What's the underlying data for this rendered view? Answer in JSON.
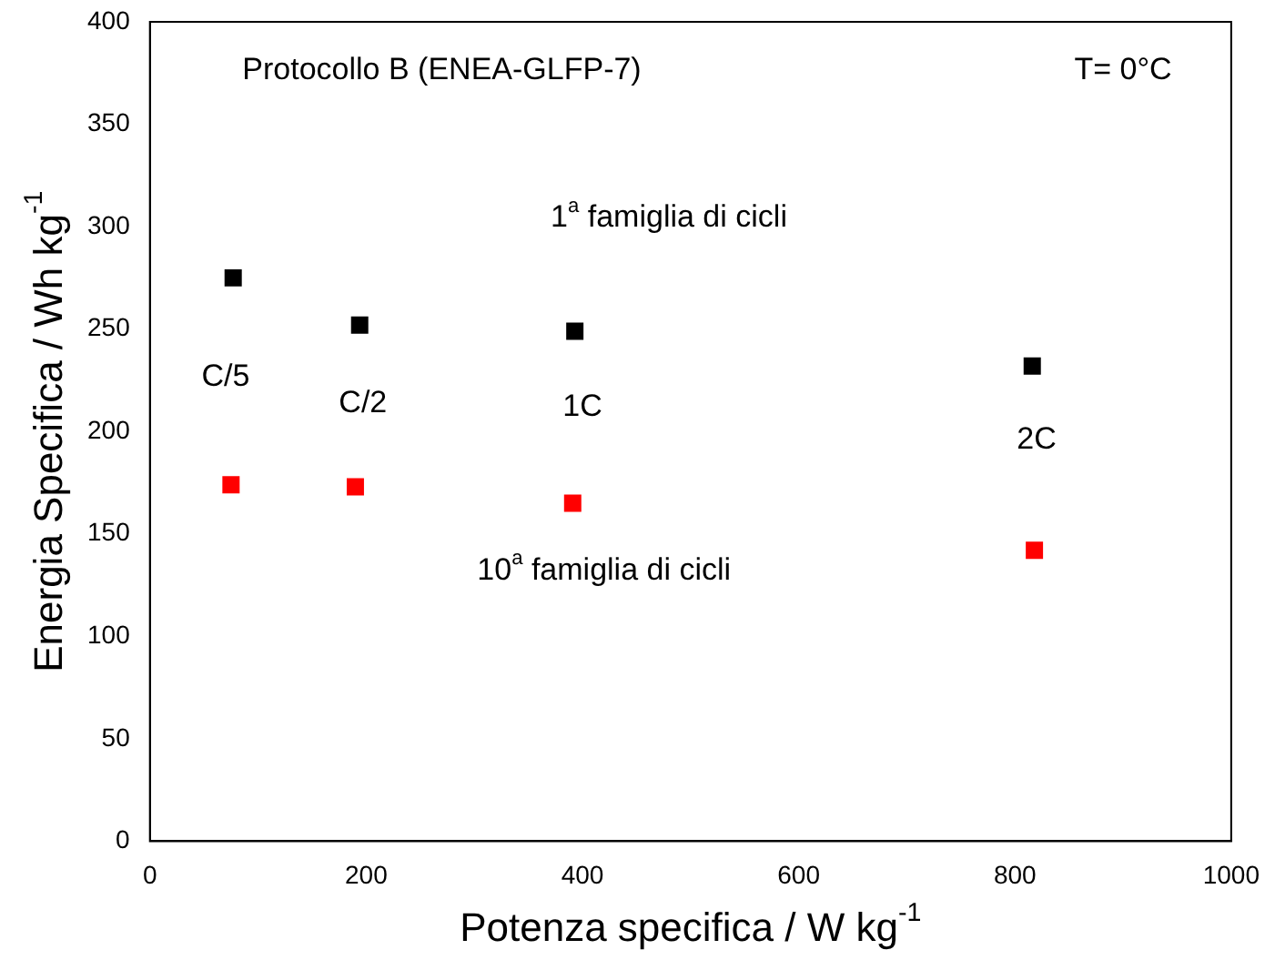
{
  "chart_data": {
    "type": "scatter",
    "xlabel": "Potenza specifica / W kg$^{-1}$",
    "ylabel": "Energia Specifica / Wh kg$^{-1}$",
    "series": [
      {
        "color": "#000000",
        "x": [
          77,
          194,
          393,
          816
        ],
        "values": [
          275,
          252,
          249,
          232
        ]
      },
      {
        "color": "#ff0000",
        "x": [
          75,
          190,
          391,
          818
        ],
        "values": [
          174,
          173,
          165,
          142
        ]
      }
    ],
    "xlim": [
      0,
      1000
    ],
    "xticks": [
      0,
      200,
      400,
      600,
      800,
      1000
    ],
    "ylim": [
      0,
      400
    ],
    "yticks": [
      0,
      50,
      100,
      150,
      200,
      250,
      300,
      350,
      400
    ],
    "marker": "square",
    "legend": false,
    "grid": false,
    "annotations": [
      "Protocollo B (ENEA-GLFP-7)",
      "T= 0°C",
      "1$^{a}$ famiglia di cicli",
      "10$^{a}$ famiglia di cicli",
      "C/5",
      "C/2",
      "1C",
      "2C"
    ]
  }
}
